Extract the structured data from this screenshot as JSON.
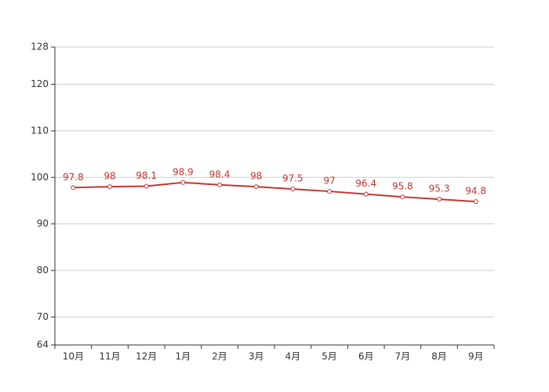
{
  "chart_data": {
    "type": "line",
    "categories": [
      "10月",
      "11月",
      "12月",
      "1月",
      "2月",
      "3月",
      "4月",
      "5月",
      "6月",
      "7月",
      "8月",
      "9月"
    ],
    "series": [
      {
        "color": "#c23531",
        "values": [
          97.8,
          98,
          98.1,
          98.9,
          98.4,
          98,
          97.5,
          97,
          96.4,
          95.8,
          95.3,
          94.8
        ]
      }
    ],
    "ylim": [
      64,
      128
    ],
    "yticks": [
      64,
      70,
      80,
      90,
      100,
      110,
      120,
      128
    ],
    "grid": true
  }
}
